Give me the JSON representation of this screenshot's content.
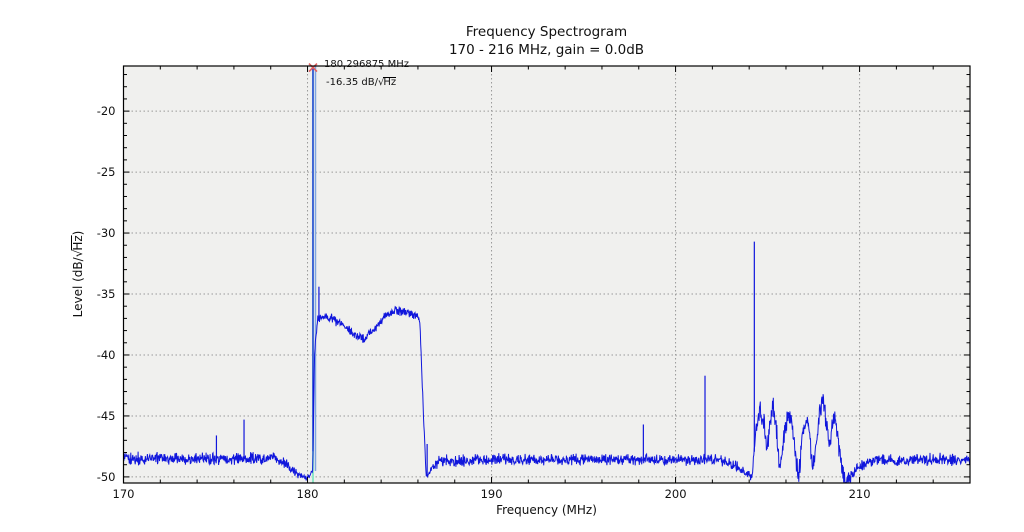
{
  "chart_data": {
    "type": "line",
    "title": "Frequency Spectrogram",
    "subtitle": "170 - 216 MHz, gain = 0.0dB",
    "xlabel": "Frequency (MHz)",
    "ylabel": "Level (dB/√Hz)",
    "ylabel_parts": {
      "prefix": "Level (dB/",
      "sqrt": "√",
      "radicand": "Hz",
      "suffix": ")"
    },
    "xlim": [
      170,
      216
    ],
    "ylim": [
      -50.5,
      -16.3
    ],
    "xticks": [
      170,
      180,
      190,
      200,
      210
    ],
    "yticks": [
      -20,
      -25,
      -30,
      -35,
      -40,
      -45,
      -50
    ],
    "x_minor_step": 2,
    "y_minor_step": 1,
    "grid": true,
    "legend": "none",
    "colors": {
      "line": "#1016dc",
      "peak_line": "#8fe8c8",
      "peak_spike_halo": "#7fa6e0",
      "peak_marker": "#e06060",
      "grid": "#999999",
      "plot_bg": "#f0f0ee",
      "fig_bg": "#ffffff",
      "axis": "#000000"
    },
    "peak_annotation": {
      "freq": 180.296875,
      "level": -16.35,
      "freq_label": "180.296875 MHz",
      "level_label": "-16.35 dB/√Hz",
      "level_parts": {
        "prefix": "-16.35 dB/",
        "sqrt": "√",
        "radicand": "Hz"
      }
    },
    "series": [
      {
        "name": "spectrum",
        "baseline_level": -48.6,
        "envelope": [
          [
            170.0,
            -48.5
          ],
          [
            178.4,
            -48.5
          ],
          [
            179.0,
            -49.2
          ],
          [
            179.6,
            -49.9
          ],
          [
            180.05,
            -50.1
          ],
          [
            180.28,
            -49.5
          ],
          [
            180.38,
            -40.0
          ],
          [
            180.55,
            -37.0
          ],
          [
            181.2,
            -36.9
          ],
          [
            181.9,
            -37.5
          ],
          [
            182.6,
            -38.4
          ],
          [
            183.1,
            -38.6
          ],
          [
            183.6,
            -37.9
          ],
          [
            184.2,
            -36.8
          ],
          [
            184.8,
            -36.3
          ],
          [
            185.35,
            -36.5
          ],
          [
            185.85,
            -36.7
          ],
          [
            186.1,
            -37.2
          ],
          [
            186.25,
            -43.0
          ],
          [
            186.45,
            -50.1
          ],
          [
            186.7,
            -49.4
          ],
          [
            187.2,
            -48.7
          ],
          [
            190.0,
            -48.6
          ],
          [
            196.0,
            -48.6
          ],
          [
            202.4,
            -48.6
          ],
          [
            203.2,
            -49.0
          ],
          [
            203.8,
            -49.6
          ],
          [
            204.15,
            -50.1
          ],
          [
            204.3,
            -47.6
          ],
          [
            204.45,
            -45.2
          ],
          [
            204.6,
            -44.4
          ],
          [
            204.8,
            -45.6
          ],
          [
            205.0,
            -47.6
          ],
          [
            205.15,
            -45.2
          ],
          [
            205.3,
            -44.4
          ],
          [
            205.5,
            -46.4
          ],
          [
            205.68,
            -49.4
          ],
          [
            205.85,
            -47.2
          ],
          [
            206.05,
            -45.2
          ],
          [
            206.2,
            -44.7
          ],
          [
            206.4,
            -46.2
          ],
          [
            206.55,
            -48.8
          ],
          [
            206.7,
            -49.9
          ],
          [
            206.9,
            -46.6
          ],
          [
            207.05,
            -45.0
          ],
          [
            207.25,
            -46.0
          ],
          [
            207.45,
            -49.3
          ],
          [
            207.65,
            -47.1
          ],
          [
            207.85,
            -44.3
          ],
          [
            208.0,
            -43.9
          ],
          [
            208.2,
            -45.4
          ],
          [
            208.35,
            -47.9
          ],
          [
            208.5,
            -45.7
          ],
          [
            208.65,
            -44.7
          ],
          [
            208.85,
            -47.1
          ],
          [
            209.05,
            -49.6
          ],
          [
            209.3,
            -50.2
          ],
          [
            209.55,
            -50.0
          ],
          [
            209.85,
            -49.3
          ],
          [
            210.4,
            -48.8
          ],
          [
            211.2,
            -48.6
          ],
          [
            216.0,
            -48.6
          ]
        ],
        "noise_amp": [
          [
            170,
            0.6
          ],
          [
            178.8,
            0.55
          ],
          [
            179.6,
            0.35
          ],
          [
            180.3,
            0.3
          ],
          [
            180.55,
            0.45
          ],
          [
            186.05,
            0.45
          ],
          [
            186.5,
            0.3
          ],
          [
            187.3,
            0.6
          ],
          [
            203.4,
            0.5
          ],
          [
            204.1,
            0.4
          ],
          [
            204.4,
            1.0
          ],
          [
            209.2,
            1.0
          ],
          [
            209.8,
            0.6
          ],
          [
            216,
            0.6
          ]
        ],
        "spikes": [
          [
            175.05,
            -46.6
          ],
          [
            176.55,
            -45.3
          ],
          [
            180.296875,
            -16.35
          ],
          [
            180.62,
            -34.4
          ],
          [
            186.5,
            -47.3
          ],
          [
            198.25,
            -45.7
          ],
          [
            201.6,
            -41.7
          ],
          [
            204.28,
            -30.7
          ]
        ]
      }
    ]
  }
}
